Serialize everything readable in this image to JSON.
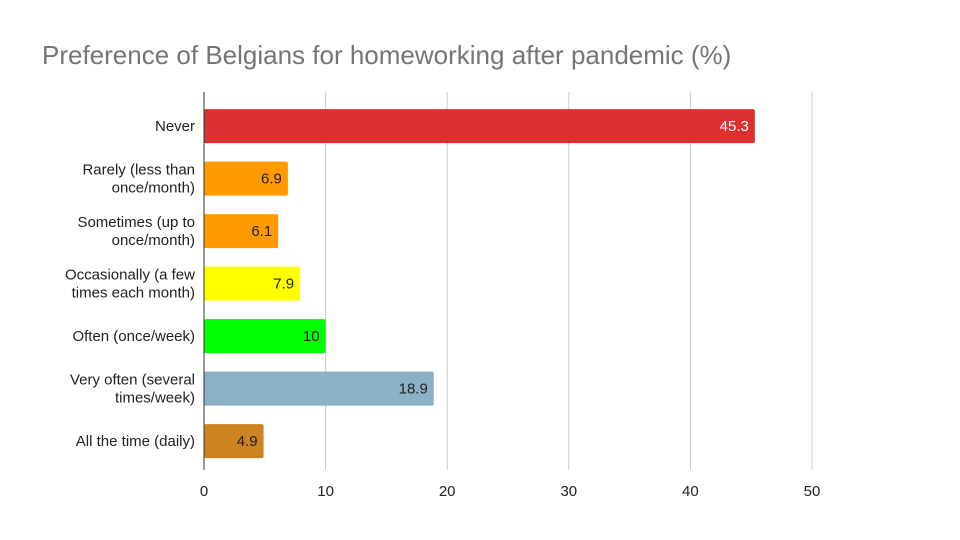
{
  "chart_data": {
    "type": "bar",
    "orientation": "horizontal",
    "title": "Preference of Belgians for homeworking after pandemic (%)",
    "categories": [
      [
        "Never"
      ],
      [
        "Rarely (less than",
        "once/month)"
      ],
      [
        "Sometimes (up to",
        "once/month)"
      ],
      [
        "Occasionally (a few",
        "times each month)"
      ],
      [
        "Often (once/week)"
      ],
      [
        "Very often (several",
        "times/week)"
      ],
      [
        "All the time (daily)"
      ]
    ],
    "values": [
      45.3,
      6.9,
      6.1,
      7.9,
      10,
      18.9,
      4.9
    ],
    "value_labels": [
      "45.3",
      "6.9",
      "6.1",
      "7.9",
      "10",
      "18.9",
      "4.9"
    ],
    "colors": [
      "#dc2f2f",
      "#ff9900",
      "#ff9900",
      "#ffff00",
      "#00ff00",
      "#8ab1c6",
      "#cd8320"
    ],
    "label_colors": [
      "#ffffff",
      "#222222",
      "#222222",
      "#222222",
      "#222222",
      "#222222",
      "#222222"
    ],
    "xlim": [
      0,
      50
    ],
    "xticks": [
      0,
      10,
      20,
      30,
      40,
      50
    ],
    "grid": true,
    "legend": "none"
  }
}
